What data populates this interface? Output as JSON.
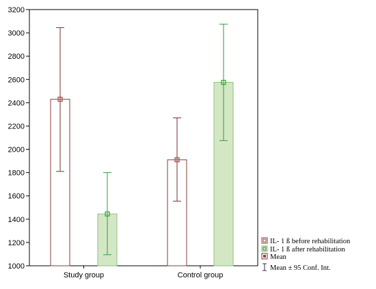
{
  "chart_data": {
    "type": "bar",
    "categories": [
      "Study group",
      "Control group"
    ],
    "y_ticks": [
      "1000",
      "1200",
      "1400",
      "1600",
      "1800",
      "2000",
      "2200",
      "2400",
      "2600",
      "2800",
      "3000",
      "3200"
    ],
    "ylim": [
      1000,
      3200
    ],
    "grid": false,
    "legend_position": "bottom-right",
    "series": [
      {
        "name": "IL- 1 ß before rehabilitation",
        "values": [
          2430,
          1910
        ],
        "ci_low": [
          1810,
          1555
        ],
        "ci_high": [
          3045,
          2270
        ],
        "bar_fill": "#ffffff",
        "bar_stroke": "#8b3a3a",
        "whisker_color": "#7a2f2f",
        "marker_color": "#a23b3b"
      },
      {
        "name": "IL- 1 ß after rehabilitation",
        "values": [
          1445,
          2575
        ],
        "ci_low": [
          1095,
          2075
        ],
        "ci_high": [
          1800,
          3075
        ],
        "bar_fill": "#d3e7c5",
        "bar_stroke": "#8fbf7a",
        "whisker_color": "#2e9e3a",
        "marker_color": "#2e9e3a"
      }
    ],
    "legend_extra": [
      {
        "label": "Mean",
        "icon": "mean-marker-icon"
      },
      {
        "label": "Mean ± 95 Conf. Int.",
        "icon": "error-bar-icon"
      }
    ],
    "colors": {
      "axis": "#000000",
      "frame": "#000000"
    }
  }
}
